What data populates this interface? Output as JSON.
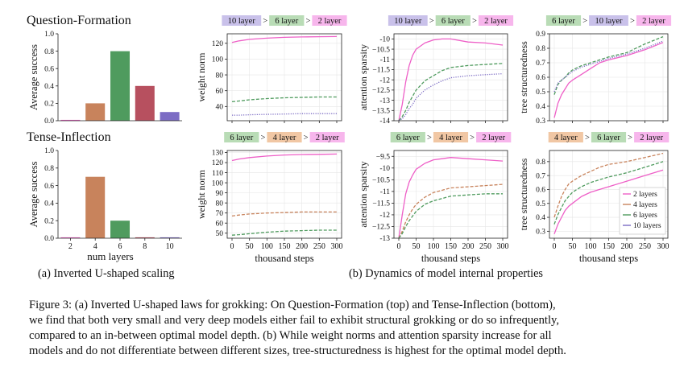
{
  "colors": {
    "layers_2": "#ee5fc7",
    "layers_4": "#c8835c",
    "layers_6": "#4f9b5e",
    "layers_8": "#b7505f",
    "layers_10": "#7c6cc4",
    "badge_2": "#f7b6ec",
    "badge_4": "#f1c7a4",
    "badge_6": "#b9dcb6",
    "badge_10": "#c9c1ea"
  },
  "subcaptions": {
    "a": "(a) Inverted U-shaped scaling",
    "b": "(b) Dynamics of model internal properties"
  },
  "figure_caption": {
    "lines": [
      "Figure 3: (a) Inverted U-shaped laws for grokking: On Question-Formation (top) and Tense-Inflection (bottom),",
      "we find that both very small and very deep models either fail to exhibit structural grokking or do so infrequently,",
      "compared to an in-between optimal model depth. (b) While weight norms and attention sparsity increase for all",
      "models and do not differentiate between different sizes, tree-structuredness is highest for the optimal model depth."
    ]
  },
  "chart_data": [
    {
      "id": "qf-bar",
      "type": "bar",
      "title": "Question-Formation",
      "ylabel": "Average success",
      "xlabel": "",
      "categories": [
        "2",
        "4",
        "6",
        "8",
        "10"
      ],
      "show_xticks": false,
      "values": [
        0.01,
        0.2,
        0.8,
        0.4,
        0.1
      ],
      "bar_colors": [
        "layers_2",
        "layers_4",
        "layers_6",
        "layers_8",
        "layers_10"
      ],
      "ylim": [
        0,
        1.0
      ],
      "yticks": [
        "0.0",
        "0.2",
        "0.4",
        "0.6",
        "0.8",
        "1.0"
      ]
    },
    {
      "id": "ti-bar",
      "type": "bar",
      "title": "Tense-Inflection",
      "ylabel": "Average success",
      "xlabel": "num layers",
      "categories": [
        "2",
        "4",
        "6",
        "8",
        "10"
      ],
      "show_xticks": true,
      "values": [
        0.01,
        0.7,
        0.2,
        0.01,
        0.01
      ],
      "bar_colors": [
        "layers_2",
        "layers_4",
        "layers_6",
        "layers_8",
        "layers_10"
      ],
      "ylim": [
        0,
        1.0
      ],
      "yticks": [
        "0.0",
        "0.2",
        "0.4",
        "0.6",
        "0.8",
        "1.0"
      ]
    },
    {
      "id": "qf-weight",
      "type": "line",
      "ylabel": "weight norm",
      "xlabel": "",
      "x": [
        0,
        20,
        50,
        100,
        150,
        200,
        250,
        300
      ],
      "xlim": [
        0,
        300
      ],
      "ylim": [
        22,
        132
      ],
      "yticks": [
        40,
        60,
        80,
        100,
        120
      ],
      "xticks": [
        0,
        50,
        100,
        150,
        200,
        250,
        300
      ],
      "show_xticks": false,
      "ranking": [
        "10 layer",
        "6 layer",
        "2 layer"
      ],
      "ranking_colors": [
        "badge_10",
        "badge_6",
        "badge_2"
      ],
      "series": [
        {
          "color": "layers_2",
          "style": "solid",
          "values": [
            121,
            123,
            125,
            126.5,
            127.5,
            128,
            128.3,
            128.5
          ]
        },
        {
          "color": "layers_6",
          "style": "dashed",
          "values": [
            46,
            47,
            48.5,
            50,
            51,
            51.5,
            52,
            52
          ]
        },
        {
          "color": "layers_10",
          "style": "dotted",
          "values": [
            29,
            29,
            29.5,
            30,
            30.5,
            31,
            31,
            31
          ]
        }
      ]
    },
    {
      "id": "qf-attn",
      "type": "line",
      "ylabel": "attention sparsity",
      "xlabel": "",
      "x": [
        0,
        10,
        20,
        30,
        40,
        50,
        75,
        100,
        125,
        150,
        200,
        250,
        300
      ],
      "xlim": [
        0,
        300
      ],
      "ylim": [
        -14.0,
        -9.75
      ],
      "yticks": [
        -14.0,
        -13.5,
        -13.0,
        -12.5,
        -12.0,
        -11.5,
        -11.0,
        -10.5,
        -10.0
      ],
      "xticks": [
        0,
        50,
        100,
        150,
        200,
        250,
        300
      ],
      "show_xticks": false,
      "ranking": [
        "10 layer",
        "6 layer",
        "2 layer"
      ],
      "ranking_colors": [
        "badge_10",
        "badge_6",
        "badge_2"
      ],
      "series": [
        {
          "color": "layers_2",
          "style": "solid",
          "values": [
            -14.0,
            -13.2,
            -12.1,
            -11.3,
            -10.8,
            -10.5,
            -10.2,
            -10.05,
            -10.0,
            -10.0,
            -10.15,
            -10.2,
            -10.3
          ]
        },
        {
          "color": "layers_6",
          "style": "dashed",
          "values": [
            -14.0,
            -13.8,
            -13.5,
            -13.1,
            -12.8,
            -12.5,
            -12.05,
            -11.8,
            -11.55,
            -11.4,
            -11.3,
            -11.25,
            -11.2
          ]
        },
        {
          "color": "layers_10",
          "style": "dotted",
          "values": [
            -14.0,
            -13.9,
            -13.7,
            -13.4,
            -13.2,
            -12.9,
            -12.5,
            -12.25,
            -12.05,
            -11.9,
            -11.8,
            -11.75,
            -11.7
          ]
        }
      ]
    },
    {
      "id": "qf-tree",
      "type": "line",
      "ylabel": "tree structuredness",
      "xlabel": "",
      "x": [
        0,
        10,
        20,
        30,
        40,
        50,
        75,
        100,
        125,
        150,
        200,
        250,
        300
      ],
      "xlim": [
        0,
        300
      ],
      "ylim": [
        0.3,
        0.9
      ],
      "yticks": [
        0.3,
        0.4,
        0.5,
        0.6,
        0.7,
        0.8,
        0.9
      ],
      "xticks": [
        0,
        50,
        100,
        150,
        200,
        250,
        300
      ],
      "show_xticks": false,
      "ranking": [
        "6 layer",
        "10 layer",
        "2 layer"
      ],
      "ranking_colors": [
        "badge_6",
        "badge_10",
        "badge_2"
      ],
      "series": [
        {
          "color": "layers_2",
          "style": "solid",
          "values": [
            0.32,
            0.42,
            0.48,
            0.52,
            0.56,
            0.58,
            0.62,
            0.66,
            0.7,
            0.72,
            0.75,
            0.79,
            0.84
          ]
        },
        {
          "color": "layers_6",
          "style": "dashed",
          "values": [
            0.48,
            0.55,
            0.58,
            0.6,
            0.63,
            0.65,
            0.68,
            0.7,
            0.72,
            0.74,
            0.77,
            0.83,
            0.88
          ]
        },
        {
          "color": "layers_10",
          "style": "dotted",
          "values": [
            0.5,
            0.56,
            0.58,
            0.6,
            0.62,
            0.64,
            0.67,
            0.69,
            0.71,
            0.73,
            0.76,
            0.8,
            0.85
          ]
        }
      ]
    },
    {
      "id": "ti-weight",
      "type": "line",
      "ylabel": "weight norm",
      "xlabel": "thousand steps",
      "x": [
        0,
        20,
        50,
        100,
        150,
        200,
        250,
        300
      ],
      "xlim": [
        0,
        300
      ],
      "ylim": [
        45,
        132
      ],
      "yticks": [
        50,
        60,
        70,
        80,
        90,
        100,
        110,
        120,
        130
      ],
      "xticks": [
        0,
        50,
        100,
        150,
        200,
        250,
        300
      ],
      "show_xticks": true,
      "ranking": [
        "6 layer",
        "4 layer",
        "2 layer"
      ],
      "ranking_colors": [
        "badge_6",
        "badge_4",
        "badge_2"
      ],
      "series": [
        {
          "color": "layers_2",
          "style": "solid",
          "values": [
            122,
            123.5,
            125,
            126.5,
            127.5,
            128,
            128.2,
            128.5
          ]
        },
        {
          "color": "layers_4",
          "style": "dashed",
          "values": [
            67,
            68,
            69,
            70,
            70.5,
            71,
            71,
            71
          ]
        },
        {
          "color": "layers_6",
          "style": "dashed",
          "values": [
            48,
            48.5,
            49.5,
            51,
            52,
            52.5,
            53,
            53
          ]
        }
      ]
    },
    {
      "id": "ti-attn",
      "type": "line",
      "ylabel": "attention sparsity",
      "xlabel": "thousand steps",
      "x": [
        0,
        10,
        20,
        30,
        40,
        50,
        75,
        100,
        125,
        150,
        200,
        250,
        300
      ],
      "xlim": [
        0,
        300
      ],
      "ylim": [
        -13.0,
        -9.25
      ],
      "yticks": [
        -13.0,
        -12.5,
        -12.0,
        -11.5,
        -11.0,
        -10.5,
        -10.0,
        -9.5
      ],
      "xticks": [
        0,
        50,
        100,
        150,
        200,
        250,
        300
      ],
      "show_xticks": true,
      "ranking": [
        "6 layer",
        "4 layer",
        "2 layer"
      ],
      "ranking_colors": [
        "badge_6",
        "badge_4",
        "badge_2"
      ],
      "series": [
        {
          "color": "layers_2",
          "style": "solid",
          "values": [
            -13.0,
            -12.0,
            -11.1,
            -10.6,
            -10.3,
            -10.05,
            -9.8,
            -9.65,
            -9.6,
            -9.55,
            -9.6,
            -9.65,
            -9.7
          ]
        },
        {
          "color": "layers_4",
          "style": "dashed",
          "values": [
            -13.0,
            -12.7,
            -12.3,
            -12.0,
            -11.75,
            -11.55,
            -11.25,
            -11.05,
            -10.95,
            -10.85,
            -10.8,
            -10.75,
            -10.7
          ]
        },
        {
          "color": "layers_6",
          "style": "dashed",
          "values": [
            -13.0,
            -12.8,
            -12.5,
            -12.25,
            -12.05,
            -11.85,
            -11.55,
            -11.4,
            -11.3,
            -11.2,
            -11.15,
            -11.1,
            -11.1
          ]
        }
      ]
    },
    {
      "id": "ti-tree",
      "type": "line",
      "ylabel": "tree structuredness",
      "xlabel": "thousand steps",
      "x": [
        0,
        10,
        20,
        30,
        40,
        50,
        75,
        100,
        125,
        150,
        200,
        250,
        300
      ],
      "xlim": [
        0,
        300
      ],
      "ylim": [
        0.25,
        0.88
      ],
      "yticks": [
        0.3,
        0.4,
        0.5,
        0.6,
        0.7,
        0.8
      ],
      "xticks": [
        0,
        50,
        100,
        150,
        200,
        250,
        300
      ],
      "show_xticks": true,
      "ranking": [
        "4 layer",
        "6 layer",
        "2 layer"
      ],
      "ranking_colors": [
        "badge_4",
        "badge_6",
        "badge_2"
      ],
      "legend": {
        "entries": [
          "2 layers",
          "4 layers",
          "6 layers",
          "10 layers"
        ],
        "colors": [
          "layers_2",
          "layers_4",
          "layers_6",
          "layers_10"
        ],
        "placement": "lower-right"
      },
      "series": [
        {
          "color": "layers_2",
          "style": "solid",
          "values": [
            0.28,
            0.35,
            0.4,
            0.45,
            0.48,
            0.5,
            0.55,
            0.58,
            0.6,
            0.62,
            0.66,
            0.7,
            0.74
          ]
        },
        {
          "color": "layers_4",
          "style": "dashed",
          "values": [
            0.4,
            0.48,
            0.55,
            0.6,
            0.64,
            0.66,
            0.7,
            0.73,
            0.76,
            0.78,
            0.8,
            0.83,
            0.86
          ]
        },
        {
          "color": "layers_6",
          "style": "dashed",
          "values": [
            0.35,
            0.42,
            0.47,
            0.52,
            0.55,
            0.58,
            0.62,
            0.65,
            0.67,
            0.69,
            0.72,
            0.76,
            0.8
          ]
        }
      ]
    }
  ]
}
